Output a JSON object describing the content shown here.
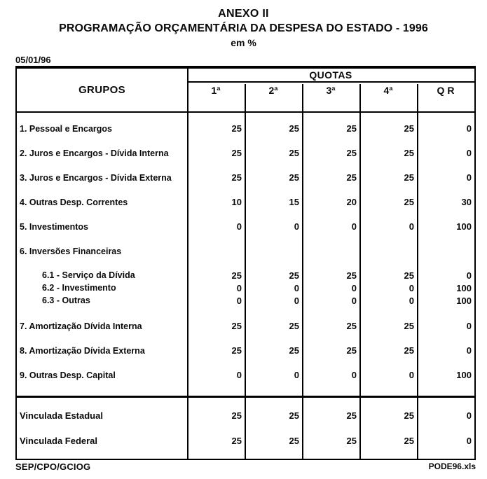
{
  "header": {
    "title_line1": "ANEXO II",
    "title_line2": "PROGRAMAÇÃO ORÇAMENTÁRIA DA DESPESA DO ESTADO - 1996",
    "title_line3": "em %",
    "date": "05/01/96"
  },
  "table": {
    "grupos_header": "GRUPOS",
    "quotas_header": "QUOTAS",
    "quota_columns": [
      "1ª",
      "2ª",
      "3ª",
      "4ª",
      "Q R"
    ],
    "rows": [
      {
        "label": "1. Pessoal e Encargos",
        "values": [
          "25",
          "25",
          "25",
          "25",
          "0"
        ]
      },
      {
        "label": "2. Juros e Encargos - Dívida Interna",
        "values": [
          "25",
          "25",
          "25",
          "25",
          "0"
        ]
      },
      {
        "label": "3. Juros e Encargos - Dívida Externa",
        "values": [
          "25",
          "25",
          "25",
          "25",
          "0"
        ]
      },
      {
        "label": "4. Outras Desp. Correntes",
        "values": [
          "10",
          "15",
          "20",
          "25",
          "30"
        ]
      },
      {
        "label": "5. Investimentos",
        "values": [
          "0",
          "0",
          "0",
          "0",
          "100"
        ]
      },
      {
        "label": "6. Inversões Financeiras",
        "values": [
          "",
          "",
          "",
          "",
          ""
        ]
      },
      {
        "label": "6.1 - Serviço da Dívida",
        "values": [
          "25",
          "25",
          "25",
          "25",
          "0"
        ]
      },
      {
        "label": "6.2 - Investimento",
        "values": [
          "0",
          "0",
          "0",
          "0",
          "100"
        ]
      },
      {
        "label": "6.3 - Outras",
        "values": [
          "0",
          "0",
          "0",
          "0",
          "100"
        ]
      },
      {
        "label": "7. Amortização Dívida Interna",
        "values": [
          "25",
          "25",
          "25",
          "25",
          "0"
        ]
      },
      {
        "label": "8. Amortização Dívida Externa",
        "values": [
          "25",
          "25",
          "25",
          "25",
          "0"
        ]
      },
      {
        "label": "9. Outras Desp. Capital",
        "values": [
          "0",
          "0",
          "0",
          "0",
          "100"
        ]
      }
    ],
    "summary_rows": [
      {
        "label": "Vinculada Estadual",
        "values": [
          "25",
          "25",
          "25",
          "25",
          "0"
        ]
      },
      {
        "label": "Vinculada Federal",
        "values": [
          "25",
          "25",
          "25",
          "25",
          "0"
        ]
      }
    ]
  },
  "footer": {
    "left": "SEP/CPO/GCIOG",
    "right": "PODE96.xls"
  },
  "colors": {
    "ink": "#0a0a0a",
    "paper": "#ffffff"
  }
}
